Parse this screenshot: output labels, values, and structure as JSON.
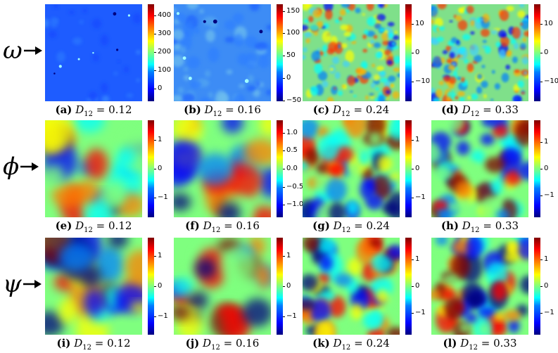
{
  "rows": [
    {
      "symbol": "ω",
      "panels": [
        {
          "label": "(a)",
          "value": "0.12",
          "ticks": [
            "400",
            "300",
            "200",
            "100",
            "0"
          ],
          "tick_values": [
            400,
            300,
            200,
            100,
            0
          ],
          "range": [
            -70,
            460
          ],
          "style": "omega-low"
        },
        {
          "label": "(b)",
          "value": "0.16",
          "ticks": [
            "150",
            "100",
            "50",
            "0",
            "−50"
          ],
          "tick_values": [
            150,
            100,
            50,
            0,
            -50
          ],
          "range": [
            -52,
            165
          ],
          "style": "omega-mid"
        },
        {
          "label": "(c)",
          "value": "0.24",
          "ticks": [
            "10",
            "0",
            "−10"
          ],
          "tick_values": [
            10,
            0,
            -10
          ],
          "range": [
            -17,
            17
          ],
          "style": "omega-high"
        },
        {
          "label": "(d)",
          "value": "0.33",
          "ticks": [
            "10",
            "0",
            "−10"
          ],
          "tick_values": [
            10,
            0,
            -10
          ],
          "range": [
            -17,
            17
          ],
          "style": "omega-high"
        }
      ]
    },
    {
      "symbol": "ϕ",
      "panels": [
        {
          "label": "(e)",
          "value": "0.12",
          "ticks": [
            "1",
            "0",
            "−1"
          ],
          "tick_values": [
            1,
            0,
            -1
          ],
          "range": [
            -1.7,
            1.7
          ],
          "style": "field-coarse"
        },
        {
          "label": "(f)",
          "value": "0.16",
          "ticks": [
            "1.0",
            "0.5",
            "0.0",
            "−0.5",
            "−1.0"
          ],
          "tick_values": [
            1.0,
            0.5,
            0.0,
            -0.5,
            -1.0
          ],
          "range": [
            -1.35,
            1.35
          ],
          "style": "field-coarse"
        },
        {
          "label": "(g)",
          "value": "0.24",
          "ticks": [
            "1",
            "0",
            "−1"
          ],
          "tick_values": [
            1,
            0,
            -1
          ],
          "range": [
            -1.7,
            1.7
          ],
          "style": "field-fine"
        },
        {
          "label": "(h)",
          "value": "0.33",
          "ticks": [
            "1",
            "0",
            "−1"
          ],
          "tick_values": [
            1,
            0,
            -1
          ],
          "range": [
            -1.8,
            1.8
          ],
          "style": "field-fine"
        }
      ]
    },
    {
      "symbol": "ψ",
      "panels": [
        {
          "label": "(i)",
          "value": "0.12",
          "ticks": [
            "1",
            "0",
            "−1"
          ],
          "tick_values": [
            1,
            0,
            -1
          ],
          "range": [
            -1.6,
            1.6
          ],
          "style": "field-coarse"
        },
        {
          "label": "(j)",
          "value": "0.16",
          "ticks": [
            "1",
            "0",
            "−1"
          ],
          "tick_values": [
            1,
            0,
            -1
          ],
          "range": [
            -1.6,
            1.6
          ],
          "style": "field-coarse"
        },
        {
          "label": "(k)",
          "value": "0.24",
          "ticks": [
            "1",
            "0",
            "−1"
          ],
          "tick_values": [
            1,
            0,
            -1
          ],
          "range": [
            -1.8,
            1.8
          ],
          "style": "field-fine"
        },
        {
          "label": "(l)",
          "value": "0.33",
          "ticks": [
            "1",
            "0",
            "−1"
          ],
          "tick_values": [
            1,
            0,
            -1
          ],
          "range": [
            -1.8,
            1.8
          ],
          "style": "field-fine"
        }
      ]
    }
  ],
  "caption_symbol": "D",
  "caption_subscript": "12",
  "caption_equals": "=",
  "colors": {
    "low": "#00007f",
    "mid": "#00ffff",
    "high": "#7f0000",
    "bg_cool": "#1e64ff"
  }
}
